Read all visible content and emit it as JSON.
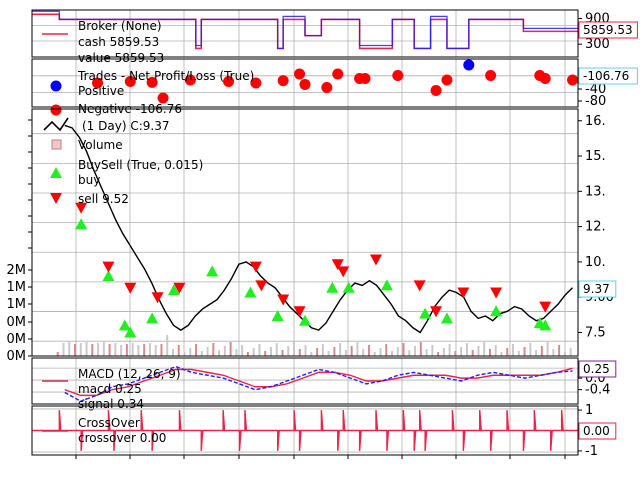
{
  "chart_data": [
    {
      "type": "line",
      "panel": "broker",
      "legend": [
        "Broker (None)",
        "cash 5859.53",
        "value 5859.53"
      ],
      "series": [
        {
          "name": "cash",
          "color": "#e8254b"
        },
        {
          "name": "value",
          "color": "#1f1fff"
        }
      ],
      "y_tick_labels": [
        "900",
        "300"
      ],
      "ylim": [
        0,
        1100
      ],
      "last_value_label": "5859.53",
      "cash_segments": [
        [
          0,
          0.05,
          1000
        ],
        [
          0.05,
          0.2,
          880
        ],
        [
          0.2,
          0.3,
          880
        ],
        [
          0.3,
          0.31,
          200
        ],
        [
          0.31,
          0.45,
          880
        ],
        [
          0.45,
          0.46,
          200
        ],
        [
          0.46,
          0.5,
          880
        ],
        [
          0.5,
          0.53,
          500
        ],
        [
          0.53,
          0.6,
          880
        ],
        [
          0.6,
          0.66,
          200
        ],
        [
          0.66,
          0.7,
          880
        ],
        [
          0.7,
          0.73,
          200
        ],
        [
          0.73,
          0.76,
          880
        ],
        [
          0.76,
          0.8,
          200
        ],
        [
          0.8,
          0.9,
          880
        ],
        [
          0.9,
          1,
          600
        ]
      ]
    },
    {
      "type": "scatter",
      "panel": "trades",
      "legend": [
        "Trades - Net Profit/Loss (True)",
        "Positive",
        "Negative -106.76"
      ],
      "series": [
        {
          "name": "Positive",
          "color": "#0000ff",
          "points": [
            [
              0.8,
              40
            ]
          ]
        },
        {
          "name": "Negative",
          "color": "#ff0000",
          "points": [
            [
              0.12,
              -20
            ],
            [
              0.18,
              -15
            ],
            [
              0.22,
              -18
            ],
            [
              0.24,
              -70
            ],
            [
              0.29,
              -10
            ],
            [
              0.36,
              -15
            ],
            [
              0.41,
              -20
            ],
            [
              0.46,
              -12
            ],
            [
              0.49,
              10
            ],
            [
              0.5,
              -25
            ],
            [
              0.54,
              -35
            ],
            [
              0.56,
              10
            ],
            [
              0.6,
              -5
            ],
            [
              0.61,
              -5
            ],
            [
              0.67,
              5
            ],
            [
              0.74,
              -45
            ],
            [
              0.76,
              -10
            ],
            [
              0.84,
              5
            ],
            [
              0.93,
              5
            ],
            [
              0.94,
              -5
            ],
            [
              0.99,
              -10
            ]
          ]
        }
      ],
      "y_tick_labels": [
        "-40",
        "-80"
      ],
      "ylim": [
        -100,
        60
      ],
      "last_value_label": "-106.76"
    },
    {
      "type": "line",
      "panel": "price",
      "legend": [
        "(1 Day) C:9.37",
        "Volume",
        "BuySell (True, 0.015)",
        "buy",
        "sell 9.52"
      ],
      "y_tick_labels": [
        "16.",
        "15.",
        "13.",
        "12.",
        "10.",
        "9.00",
        "7.5"
      ],
      "y_tick_values": [
        16.5,
        15.0,
        13.5,
        12.0,
        10.5,
        9.0,
        7.5
      ],
      "volume_tick_labels": [
        "2M",
        "1M",
        "1M",
        "0M",
        "0M",
        "0M"
      ],
      "ylim": [
        6.5,
        17.0
      ],
      "last_value_label": "9.37",
      "close": [
        16.3,
        16.2,
        15.8,
        15.2,
        14.4,
        13.7,
        13.0,
        12.3,
        11.7,
        11.2,
        10.7,
        10.2,
        9.6,
        8.9,
        8.3,
        7.8,
        7.6,
        7.8,
        8.2,
        8.5,
        8.7,
        8.9,
        9.3,
        9.8,
        10.4,
        10.5,
        10.3,
        9.9,
        9.6,
        9.4,
        9.0,
        8.6,
        8.3,
        8.0,
        7.7,
        7.6,
        7.9,
        8.4,
        8.9,
        9.3,
        9.6,
        9.5,
        9.7,
        9.5,
        9.1,
        8.7,
        8.2,
        8.0,
        7.7,
        7.5,
        8.0,
        8.6,
        9.0,
        9.3,
        9.2,
        9.0,
        8.4,
        8.1,
        8.2,
        8.0,
        8.3,
        8.4,
        8.6,
        8.5,
        8.2,
        8.0,
        8.1,
        8.4,
        8.7,
        9.1,
        9.4
      ],
      "buys": [
        [
          0.09,
          12.1
        ],
        [
          0.14,
          9.9
        ],
        [
          0.17,
          7.8
        ],
        [
          0.18,
          7.5
        ],
        [
          0.22,
          8.1
        ],
        [
          0.26,
          9.3
        ],
        [
          0.33,
          10.1
        ],
        [
          0.4,
          9.2
        ],
        [
          0.45,
          8.2
        ],
        [
          0.5,
          8.0
        ],
        [
          0.55,
          9.4
        ],
        [
          0.58,
          9.4
        ],
        [
          0.65,
          9.5
        ],
        [
          0.72,
          8.3
        ],
        [
          0.76,
          8.1
        ],
        [
          0.85,
          8.4
        ],
        [
          0.93,
          7.9
        ],
        [
          0.94,
          7.8
        ]
      ],
      "sells": [
        [
          0.09,
          12.8
        ],
        [
          0.14,
          10.3
        ],
        [
          0.18,
          9.4
        ],
        [
          0.23,
          9.0
        ],
        [
          0.27,
          9.4
        ],
        [
          0.41,
          10.3
        ],
        [
          0.42,
          9.5
        ],
        [
          0.46,
          8.9
        ],
        [
          0.49,
          8.4
        ],
        [
          0.56,
          10.4
        ],
        [
          0.57,
          10.1
        ],
        [
          0.63,
          10.6
        ],
        [
          0.71,
          9.5
        ],
        [
          0.74,
          8.4
        ],
        [
          0.79,
          9.2
        ],
        [
          0.85,
          9.2
        ],
        [
          0.94,
          8.6
        ]
      ]
    },
    {
      "type": "line",
      "panel": "macd",
      "legend": [
        "MACD (12, 26, 9)",
        "macd 0.25",
        "signal 0.34"
      ],
      "y_tick_labels": [
        "0.4",
        "0.0",
        "-0.4"
      ],
      "ylim": [
        -0.9,
        0.7
      ],
      "last_value_label": "0.25",
      "macd": [
        -0.5,
        -0.8,
        -0.6,
        -0.3,
        -0.2,
        0.0,
        0.2,
        0.4,
        0.2,
        0.1,
        0.0,
        -0.2,
        -0.4,
        -0.3,
        -0.1,
        0.1,
        0.3,
        0.2,
        0.0,
        -0.2,
        -0.1,
        0.1,
        0.2,
        0.1,
        0.0,
        -0.1,
        0.1,
        0.2,
        0.1,
        0.0,
        0.1,
        0.2,
        0.25
      ],
      "signal": [
        -0.4,
        -0.6,
        -0.6,
        -0.4,
        -0.3,
        -0.1,
        0.1,
        0.3,
        0.3,
        0.2,
        0.1,
        -0.1,
        -0.3,
        -0.3,
        -0.2,
        0.0,
        0.2,
        0.2,
        0.1,
        -0.1,
        -0.1,
        0.0,
        0.1,
        0.1,
        0.1,
        0.0,
        0.0,
        0.1,
        0.1,
        0.1,
        0.1,
        0.2,
        0.34
      ]
    },
    {
      "type": "line",
      "panel": "crossover",
      "legend": [
        "CrossOver",
        "crossover 0.00"
      ],
      "y_tick_labels": [
        "1",
        "-1"
      ],
      "ylim": [
        -1.2,
        1.2
      ],
      "last_value_label": "0.00",
      "spikes": [
        [
          0.05,
          1
        ],
        [
          0.09,
          -1
        ],
        [
          0.14,
          1
        ],
        [
          0.15,
          -1
        ],
        [
          0.2,
          1
        ],
        [
          0.22,
          -1
        ],
        [
          0.27,
          1
        ],
        [
          0.31,
          -1
        ],
        [
          0.35,
          1
        ],
        [
          0.38,
          -1
        ],
        [
          0.39,
          1
        ],
        [
          0.45,
          -1
        ],
        [
          0.48,
          1
        ],
        [
          0.49,
          -1
        ],
        [
          0.53,
          1
        ],
        [
          0.56,
          -1
        ],
        [
          0.57,
          1
        ],
        [
          0.6,
          -1
        ],
        [
          0.63,
          1
        ],
        [
          0.65,
          -1
        ],
        [
          0.68,
          1
        ],
        [
          0.7,
          -1
        ],
        [
          0.71,
          1
        ],
        [
          0.72,
          -1
        ],
        [
          0.77,
          1
        ],
        [
          0.79,
          -1
        ],
        [
          0.82,
          1
        ],
        [
          0.84,
          -1
        ],
        [
          0.87,
          1
        ],
        [
          0.9,
          -1
        ],
        [
          0.92,
          1
        ],
        [
          0.95,
          -1
        ],
        [
          0.97,
          1
        ]
      ]
    }
  ]
}
